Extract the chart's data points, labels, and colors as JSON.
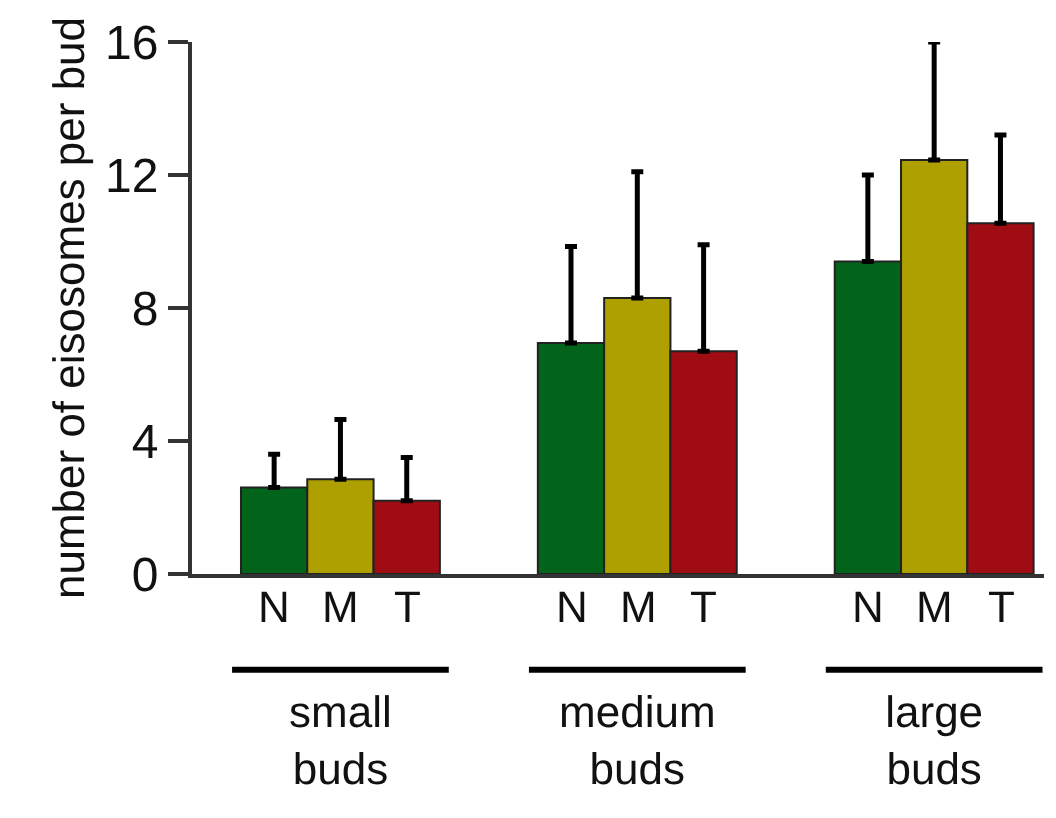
{
  "chart_data": {
    "type": "bar",
    "ylabel": "number of eisosomes per bud",
    "categories": [
      "small buds",
      "medium buds",
      "large buds"
    ],
    "ylim": [
      0,
      16
    ],
    "yticks": [
      0,
      4,
      8,
      12,
      16
    ],
    "series": [
      {
        "name": "N",
        "color": "#02641a",
        "values": [
          2.6,
          6.95,
          9.4
        ],
        "errors": [
          [
            2.6,
            3.6
          ],
          [
            6.95,
            9.85
          ],
          [
            9.4,
            12.0
          ]
        ]
      },
      {
        "name": "M",
        "color": "#ada000",
        "values": [
          2.85,
          8.3,
          12.45
        ],
        "errors": [
          [
            2.85,
            4.65
          ],
          [
            8.3,
            12.1
          ],
          [
            12.45,
            16.0
          ]
        ]
      },
      {
        "name": "T",
        "color": "#a00c14",
        "values": [
          2.2,
          6.7,
          10.55
        ],
        "errors": [
          [
            2.2,
            3.5
          ],
          [
            6.7,
            9.9
          ],
          [
            10.55,
            13.2
          ]
        ]
      }
    ]
  }
}
